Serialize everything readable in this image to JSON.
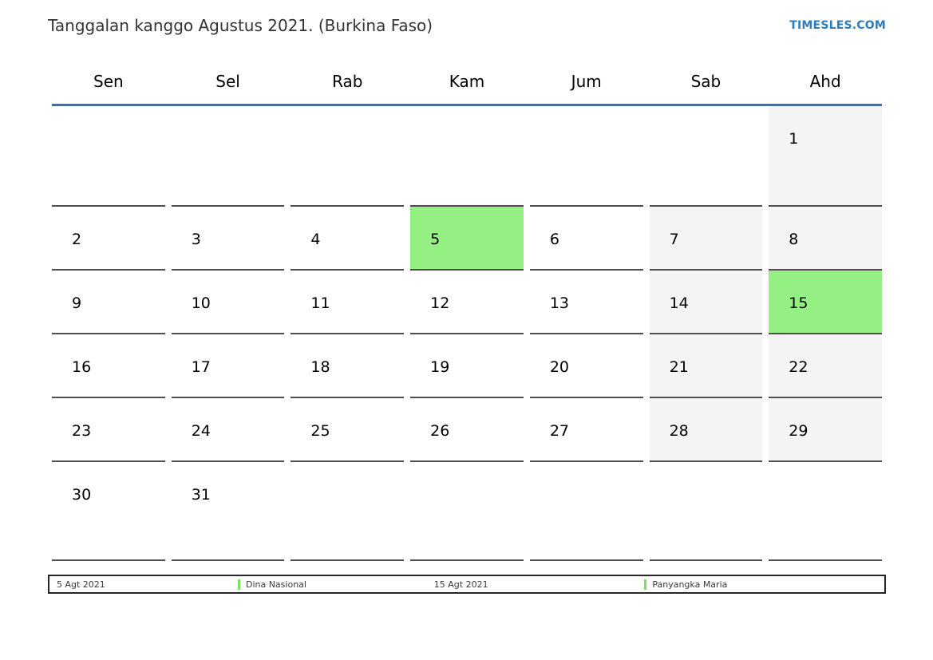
{
  "page": {
    "title": "Tanggalan kanggo Agustus 2021. (Burkina Faso)",
    "site_link": "TIMESLES.COM"
  },
  "weekdays": [
    "Sen",
    "Sel",
    "Rab",
    "Kam",
    "Jum",
    "Sab",
    "Ahd"
  ],
  "calendar": {
    "month_label": "Agustus 2021",
    "weeks": [
      [
        {
          "day": "",
          "type": "empty"
        },
        {
          "day": "",
          "type": "empty"
        },
        {
          "day": "",
          "type": "empty"
        },
        {
          "day": "",
          "type": "empty"
        },
        {
          "day": "",
          "type": "empty"
        },
        {
          "day": "",
          "type": "empty"
        },
        {
          "day": "1",
          "type": "weekend"
        }
      ],
      [
        {
          "day": "2",
          "type": "normal"
        },
        {
          "day": "3",
          "type": "normal"
        },
        {
          "day": "4",
          "type": "normal"
        },
        {
          "day": "5",
          "type": "holiday"
        },
        {
          "day": "6",
          "type": "normal"
        },
        {
          "day": "7",
          "type": "weekend"
        },
        {
          "day": "8",
          "type": "weekend"
        }
      ],
      [
        {
          "day": "9",
          "type": "normal"
        },
        {
          "day": "10",
          "type": "normal"
        },
        {
          "day": "11",
          "type": "normal"
        },
        {
          "day": "12",
          "type": "normal"
        },
        {
          "day": "13",
          "type": "normal"
        },
        {
          "day": "14",
          "type": "weekend"
        },
        {
          "day": "15",
          "type": "holiday"
        }
      ],
      [
        {
          "day": "16",
          "type": "normal"
        },
        {
          "day": "17",
          "type": "normal"
        },
        {
          "day": "18",
          "type": "normal"
        },
        {
          "day": "19",
          "type": "normal"
        },
        {
          "day": "20",
          "type": "normal"
        },
        {
          "day": "21",
          "type": "weekend"
        },
        {
          "day": "22",
          "type": "weekend"
        }
      ],
      [
        {
          "day": "23",
          "type": "normal"
        },
        {
          "day": "24",
          "type": "normal"
        },
        {
          "day": "25",
          "type": "normal"
        },
        {
          "day": "26",
          "type": "normal"
        },
        {
          "day": "27",
          "type": "normal"
        },
        {
          "day": "28",
          "type": "weekend"
        },
        {
          "day": "29",
          "type": "weekend"
        }
      ],
      [
        {
          "day": "30",
          "type": "normal"
        },
        {
          "day": "31",
          "type": "normal"
        },
        {
          "day": "",
          "type": "empty"
        },
        {
          "day": "",
          "type": "empty"
        },
        {
          "day": "",
          "type": "empty"
        },
        {
          "day": "",
          "type": "empty"
        },
        {
          "day": "",
          "type": "empty"
        }
      ]
    ]
  },
  "legend": {
    "items": [
      {
        "text": "5 Agt 2021",
        "type": "date"
      },
      {
        "text": "Dina Nasional",
        "type": "holiday"
      },
      {
        "text": "15 Agt 2021",
        "type": "date"
      },
      {
        "text": "Panyangka Maria",
        "type": "holiday"
      }
    ]
  },
  "colors": {
    "holiday_green": "#94f083",
    "weekend_gray": "#f4f4f4",
    "header_line_blue": "#4a6c96",
    "legend_marker_green": "#7ee163",
    "link_blue": "#2d7cbe",
    "cell_border_gray": "#4f4f4f"
  }
}
